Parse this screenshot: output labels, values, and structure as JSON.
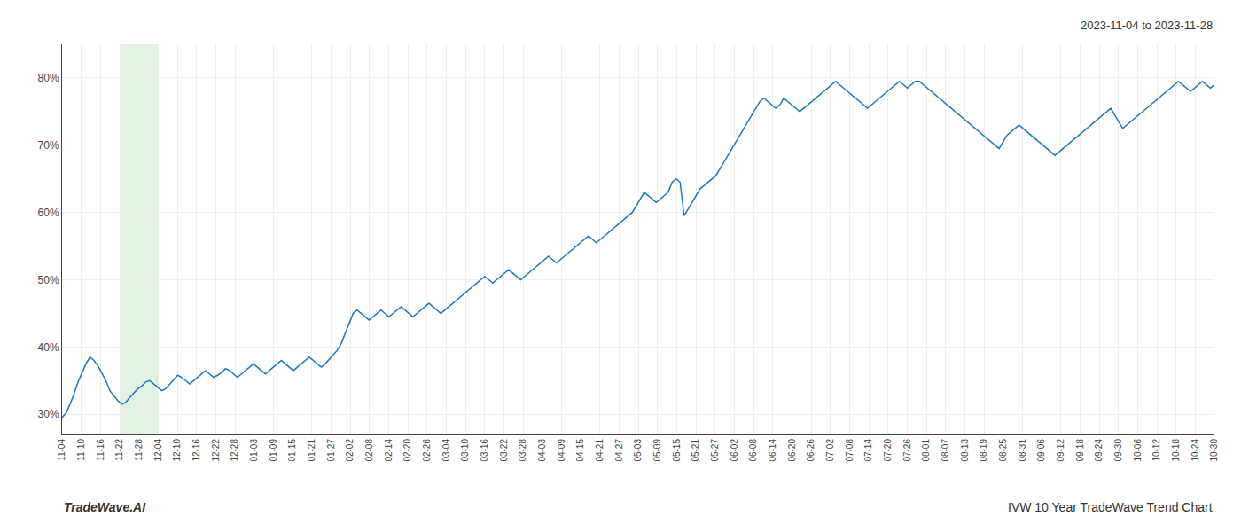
{
  "chart_data": {
    "type": "line",
    "subtitle": "2023-11-04 to 2023-11-28",
    "annotations": [
      "TradeWave.AI",
      "IVW 10 Year TradeWave Trend Chart"
    ],
    "color": "#1a7abf",
    "grid": true,
    "shade": {
      "x": [
        3,
        5
      ],
      "color": "#d6ecd6"
    },
    "xlim": [
      0,
      60
    ],
    "xticks": [
      {
        "value": 0,
        "label": "11-04"
      },
      {
        "value": 1,
        "label": "11-10"
      },
      {
        "value": 2,
        "label": "11-16"
      },
      {
        "value": 3,
        "label": "11-22"
      },
      {
        "value": 4,
        "label": "11-28"
      },
      {
        "value": 5,
        "label": "12-04"
      },
      {
        "value": 6,
        "label": "12-10"
      },
      {
        "value": 7,
        "label": "12-16"
      },
      {
        "value": 8,
        "label": "12-22"
      },
      {
        "value": 9,
        "label": "12-28"
      },
      {
        "value": 10,
        "label": "01-03"
      },
      {
        "value": 11,
        "label": "01-09"
      },
      {
        "value": 12,
        "label": "01-15"
      },
      {
        "value": 13,
        "label": "01-21"
      },
      {
        "value": 14,
        "label": "01-27"
      },
      {
        "value": 15,
        "label": "02-02"
      },
      {
        "value": 16,
        "label": "02-08"
      },
      {
        "value": 17,
        "label": "02-14"
      },
      {
        "value": 18,
        "label": "02-20"
      },
      {
        "value": 19,
        "label": "02-26"
      },
      {
        "value": 20,
        "label": "03-04"
      },
      {
        "value": 21,
        "label": "03-10"
      },
      {
        "value": 22,
        "label": "03-16"
      },
      {
        "value": 23,
        "label": "03-22"
      },
      {
        "value": 24,
        "label": "03-28"
      },
      {
        "value": 25,
        "label": "04-03"
      },
      {
        "value": 26,
        "label": "04-09"
      },
      {
        "value": 27,
        "label": "04-15"
      },
      {
        "value": 28,
        "label": "04-21"
      },
      {
        "value": 29,
        "label": "04-27"
      },
      {
        "value": 30,
        "label": "05-03"
      },
      {
        "value": 31,
        "label": "05-09"
      },
      {
        "value": 32,
        "label": "05-15"
      },
      {
        "value": 33,
        "label": "05-21"
      },
      {
        "value": 34,
        "label": "05-27"
      },
      {
        "value": 35,
        "label": "06-02"
      },
      {
        "value": 36,
        "label": "06-08"
      },
      {
        "value": 37,
        "label": "06-14"
      },
      {
        "value": 38,
        "label": "06-20"
      },
      {
        "value": 39,
        "label": "06-26"
      },
      {
        "value": 40,
        "label": "07-02"
      },
      {
        "value": 41,
        "label": "07-08"
      },
      {
        "value": 42,
        "label": "07-14"
      },
      {
        "value": 43,
        "label": "07-20"
      },
      {
        "value": 44,
        "label": "07-26"
      },
      {
        "value": 45,
        "label": "08-01"
      },
      {
        "value": 46,
        "label": "08-07"
      },
      {
        "value": 47,
        "label": "08-13"
      },
      {
        "value": 48,
        "label": "08-19"
      },
      {
        "value": 49,
        "label": "08-25"
      },
      {
        "value": 50,
        "label": "08-31"
      },
      {
        "value": 51,
        "label": "09-06"
      },
      {
        "value": 52,
        "label": "09-12"
      },
      {
        "value": 53,
        "label": "09-18"
      },
      {
        "value": 54,
        "label": "09-24"
      },
      {
        "value": 55,
        "label": "09-30"
      },
      {
        "value": 56,
        "label": "10-06"
      },
      {
        "value": 57,
        "label": "10-12"
      },
      {
        "value": 58,
        "label": "10-18"
      },
      {
        "value": 59,
        "label": "10-24"
      },
      {
        "value": 60,
        "label": "10-30"
      }
    ],
    "ylim": [
      27,
      85
    ],
    "yticks": [
      {
        "value": 30,
        "label": "30%"
      },
      {
        "value": 40,
        "label": "40%"
      },
      {
        "value": 50,
        "label": "50%"
      },
      {
        "value": 60,
        "label": "60%"
      },
      {
        "value": 70,
        "label": "70%"
      },
      {
        "value": 80,
        "label": "80%"
      }
    ],
    "values": [
      29.5,
      30.2,
      31.5,
      33.0,
      34.8,
      36.2,
      37.5,
      38.5,
      38.0,
      37.2,
      36.0,
      35.0,
      33.5,
      32.8,
      32.0,
      31.5,
      31.8,
      32.5,
      33.2,
      33.8,
      34.2,
      34.8,
      35.0,
      34.5,
      34.0,
      33.5,
      33.8,
      34.5,
      35.2,
      35.8,
      35.5,
      35.0,
      34.5,
      35.0,
      35.5,
      36.0,
      36.5,
      36.0,
      35.5,
      35.8,
      36.2,
      36.8,
      36.5,
      36.0,
      35.5,
      36.0,
      36.5,
      37.0,
      37.5,
      37.0,
      36.5,
      36.0,
      36.5,
      37.0,
      37.5,
      38.0,
      37.5,
      37.0,
      36.5,
      37.0,
      37.5,
      38.0,
      38.5,
      38.0,
      37.5,
      37.0,
      37.5,
      38.2,
      38.8,
      39.5,
      40.5,
      42.0,
      43.5,
      45.0,
      45.5,
      45.0,
      44.5,
      44.0,
      44.5,
      45.0,
      45.5,
      45.0,
      44.5,
      45.0,
      45.5,
      46.0,
      45.5,
      45.0,
      44.5,
      45.0,
      45.5,
      46.0,
      46.5,
      46.0,
      45.5,
      45.0,
      45.5,
      46.0,
      46.5,
      47.0,
      47.5,
      48.0,
      48.5,
      49.0,
      49.5,
      50.0,
      50.5,
      50.0,
      49.5,
      50.0,
      50.5,
      51.0,
      51.5,
      51.0,
      50.5,
      50.0,
      50.5,
      51.0,
      51.5,
      52.0,
      52.5,
      53.0,
      53.5,
      53.0,
      52.5,
      53.0,
      53.5,
      54.0,
      54.5,
      55.0,
      55.5,
      56.0,
      56.5,
      56.0,
      55.5,
      56.0,
      56.5,
      57.0,
      57.5,
      58.0,
      58.5,
      59.0,
      59.5,
      60.0,
      61.0,
      62.0,
      63.0,
      62.5,
      62.0,
      61.5,
      62.0,
      62.5,
      63.0,
      64.5,
      65.0,
      64.5,
      59.5,
      60.5,
      61.5,
      62.5,
      63.5,
      64.0,
      64.5,
      65.0,
      65.5,
      66.5,
      67.5,
      68.5,
      69.5,
      70.5,
      71.5,
      72.5,
      73.5,
      74.5,
      75.5,
      76.5,
      77.0,
      76.5,
      76.0,
      75.5,
      76.0,
      77.0,
      76.5,
      76.0,
      75.5,
      75.0,
      75.5,
      76.0,
      76.5,
      77.0,
      77.5,
      78.0,
      78.5,
      79.0,
      79.5,
      79.0,
      78.5,
      78.0,
      77.5,
      77.0,
      76.5,
      76.0,
      75.5,
      76.0,
      76.5,
      77.0,
      77.5,
      78.0,
      78.5,
      79.0,
      79.5,
      79.0,
      78.5,
      79.0,
      79.5,
      79.5,
      79.0,
      78.5,
      78.0,
      77.5,
      77.0,
      76.5,
      76.0,
      75.5,
      75.0,
      74.5,
      74.0,
      73.5,
      73.0,
      72.5,
      72.0,
      71.5,
      71.0,
      70.5,
      70.0,
      69.5,
      70.5,
      71.5,
      72.0,
      72.5,
      73.0,
      72.5,
      72.0,
      71.5,
      71.0,
      70.5,
      70.0,
      69.5,
      69.0,
      68.5,
      69.0,
      69.5,
      70.0,
      70.5,
      71.0,
      71.5,
      72.0,
      72.5,
      73.0,
      73.5,
      74.0,
      74.5,
      75.0,
      75.5,
      74.5,
      73.5,
      72.5,
      73.0,
      73.5,
      74.0,
      74.5,
      75.0,
      75.5,
      76.0,
      76.5,
      77.0,
      77.5,
      78.0,
      78.5,
      79.0,
      79.5,
      79.0,
      78.5,
      78.0,
      78.5,
      79.0,
      79.5,
      79.0,
      78.5,
      79.0
    ]
  }
}
